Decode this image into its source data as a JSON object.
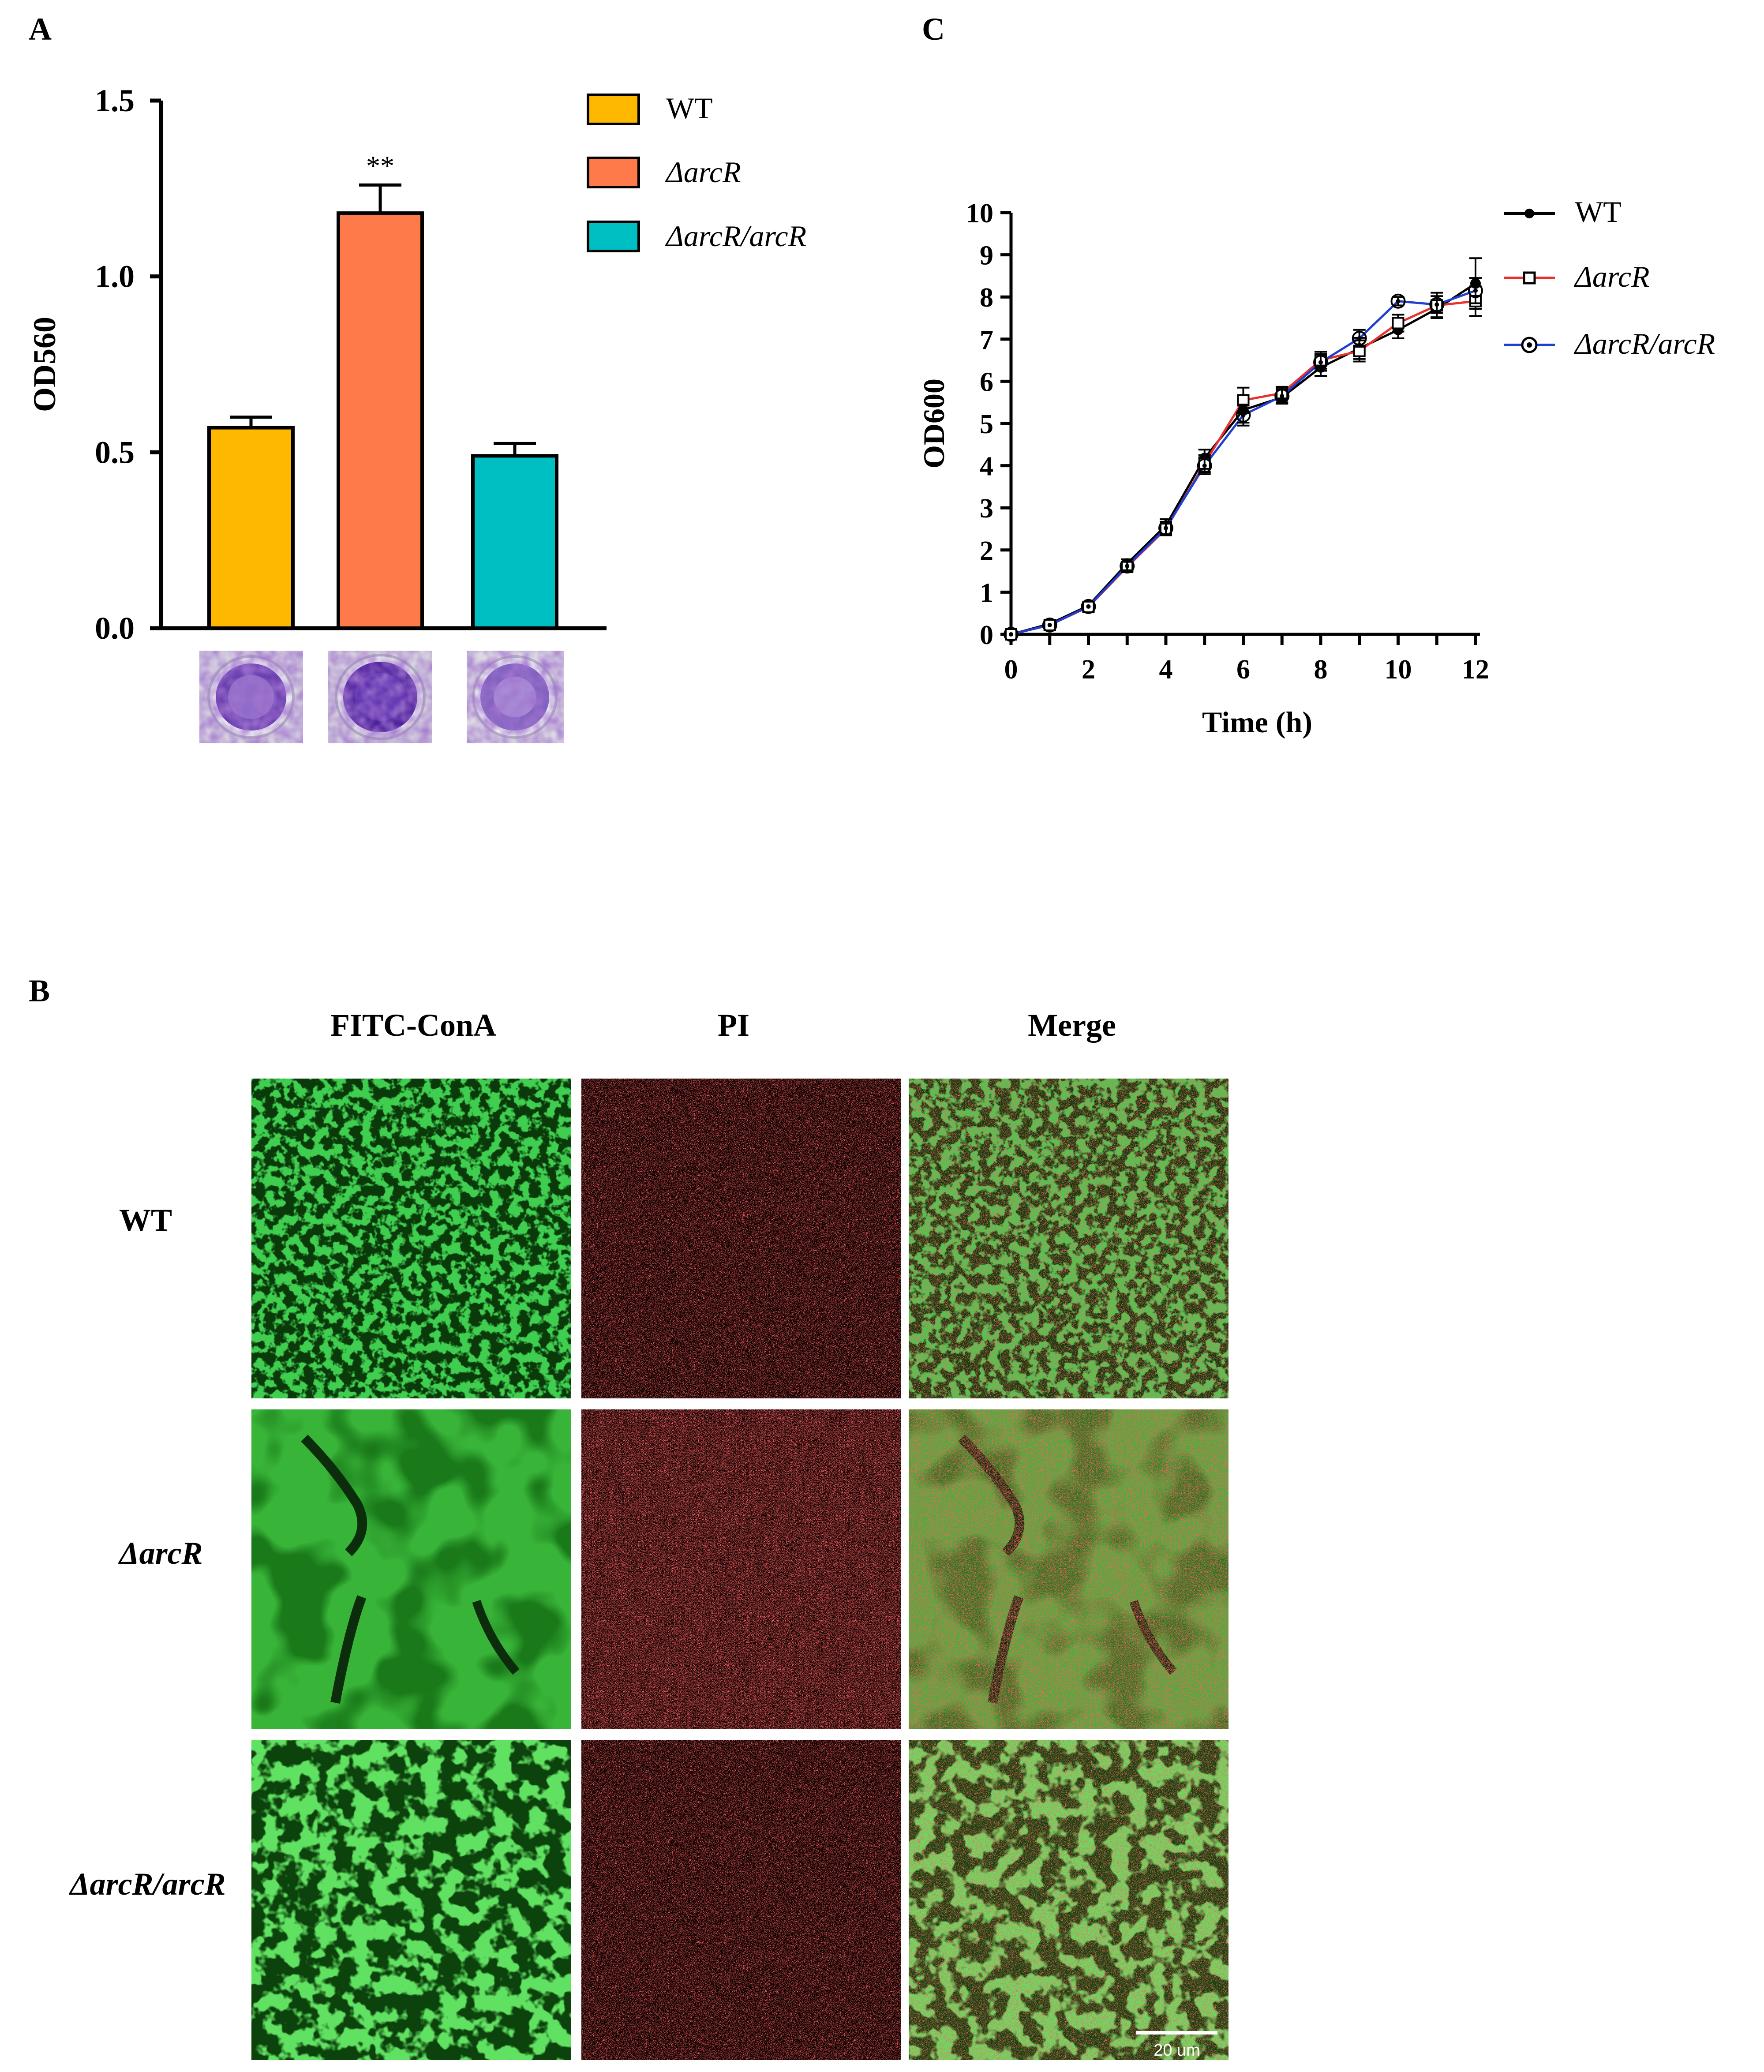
{
  "panel_labels": {
    "a": "A",
    "b": "B",
    "c": "C"
  },
  "colors": {
    "wt_bar": "#FFB800",
    "arcr_bar": "#FF7A4A",
    "comp_bar": "#00BFC2",
    "line_wt": "#000000",
    "line_arcr": "#E8312A",
    "line_comp": "#1F3FCF",
    "micro_green": "#1E9A1E",
    "micro_red": "#FF2020",
    "crystal_violet": "#5A2CA0"
  },
  "chart_data": [
    {
      "id": "panel-a",
      "type": "bar",
      "title": "",
      "xlabel": "",
      "ylabel": "OD560",
      "ylim": [
        0,
        1.5
      ],
      "yticks": [
        "0.0",
        "0.5",
        "1.0",
        "1.5"
      ],
      "categories": [
        "WT",
        "ΔarcR",
        "ΔarcR/arcR"
      ],
      "values": [
        0.57,
        1.18,
        0.49
      ],
      "errors": [
        0.03,
        0.08,
        0.035
      ],
      "annotations": [
        {
          "category": "ΔarcR",
          "text": "**"
        }
      ],
      "legend": {
        "placement": "top-right",
        "entries": [
          "WT",
          "ΔarcR",
          "ΔarcR/arcR"
        ]
      },
      "images_below": [
        "crystal violet well WT",
        "crystal violet well ΔarcR",
        "crystal violet well ΔarcR/arcR"
      ]
    },
    {
      "id": "panel-c",
      "type": "line",
      "title": "",
      "xlabel": "Time (h)",
      "ylabel": "OD600",
      "xlim": [
        0,
        12
      ],
      "ylim": [
        0,
        10
      ],
      "xticks": [
        "0",
        "2",
        "4",
        "6",
        "8",
        "10",
        "12"
      ],
      "yticks": [
        "0",
        "1",
        "2",
        "3",
        "4",
        "5",
        "6",
        "7",
        "8",
        "9",
        "10"
      ],
      "x": [
        0,
        1,
        2,
        3,
        4,
        5,
        6,
        7,
        8,
        9,
        10,
        11,
        12
      ],
      "series": [
        {
          "name": "WT",
          "marker": "filled-circle",
          "values": [
            0,
            0.25,
            0.68,
            1.68,
            2.58,
            4.18,
            5.32,
            5.62,
            6.33,
            6.78,
            7.22,
            7.72,
            8.32
          ],
          "errors": [
            0.02,
            0.05,
            0.05,
            0.1,
            0.15,
            0.2,
            0.3,
            0.15,
            0.2,
            0.25,
            0.2,
            0.2,
            0.6
          ]
        },
        {
          "name": "ΔarcR",
          "marker": "open-square",
          "values": [
            0,
            0.22,
            0.65,
            1.6,
            2.5,
            4.05,
            5.55,
            5.72,
            6.5,
            6.72,
            7.38,
            7.8,
            7.9
          ],
          "errors": [
            0.02,
            0.05,
            0.05,
            0.1,
            0.15,
            0.2,
            0.3,
            0.15,
            0.2,
            0.25,
            0.2,
            0.3,
            0.35
          ]
        },
        {
          "name": "ΔarcR/arcR",
          "marker": "open-circle-dot",
          "values": [
            0,
            0.22,
            0.66,
            1.62,
            2.52,
            4.0,
            5.2,
            5.65,
            6.45,
            7.02,
            7.9,
            7.82,
            8.15
          ],
          "errors": [
            0.02,
            0.05,
            0.05,
            0.1,
            0.15,
            0.2,
            0.25,
            0.15,
            0.2,
            0.2,
            0.1,
            0.2,
            0.3
          ]
        }
      ],
      "legend": {
        "placement": "top-right",
        "entries": [
          "WT",
          "ΔarcR",
          "ΔarcR/arcR"
        ]
      }
    }
  ],
  "panel_b": {
    "columns": [
      "FITC-ConA",
      "PI",
      "Merge"
    ],
    "rows": [
      "WT",
      "ΔarcR",
      "ΔarcR/arcR"
    ],
    "scale_bar": "20 um"
  }
}
